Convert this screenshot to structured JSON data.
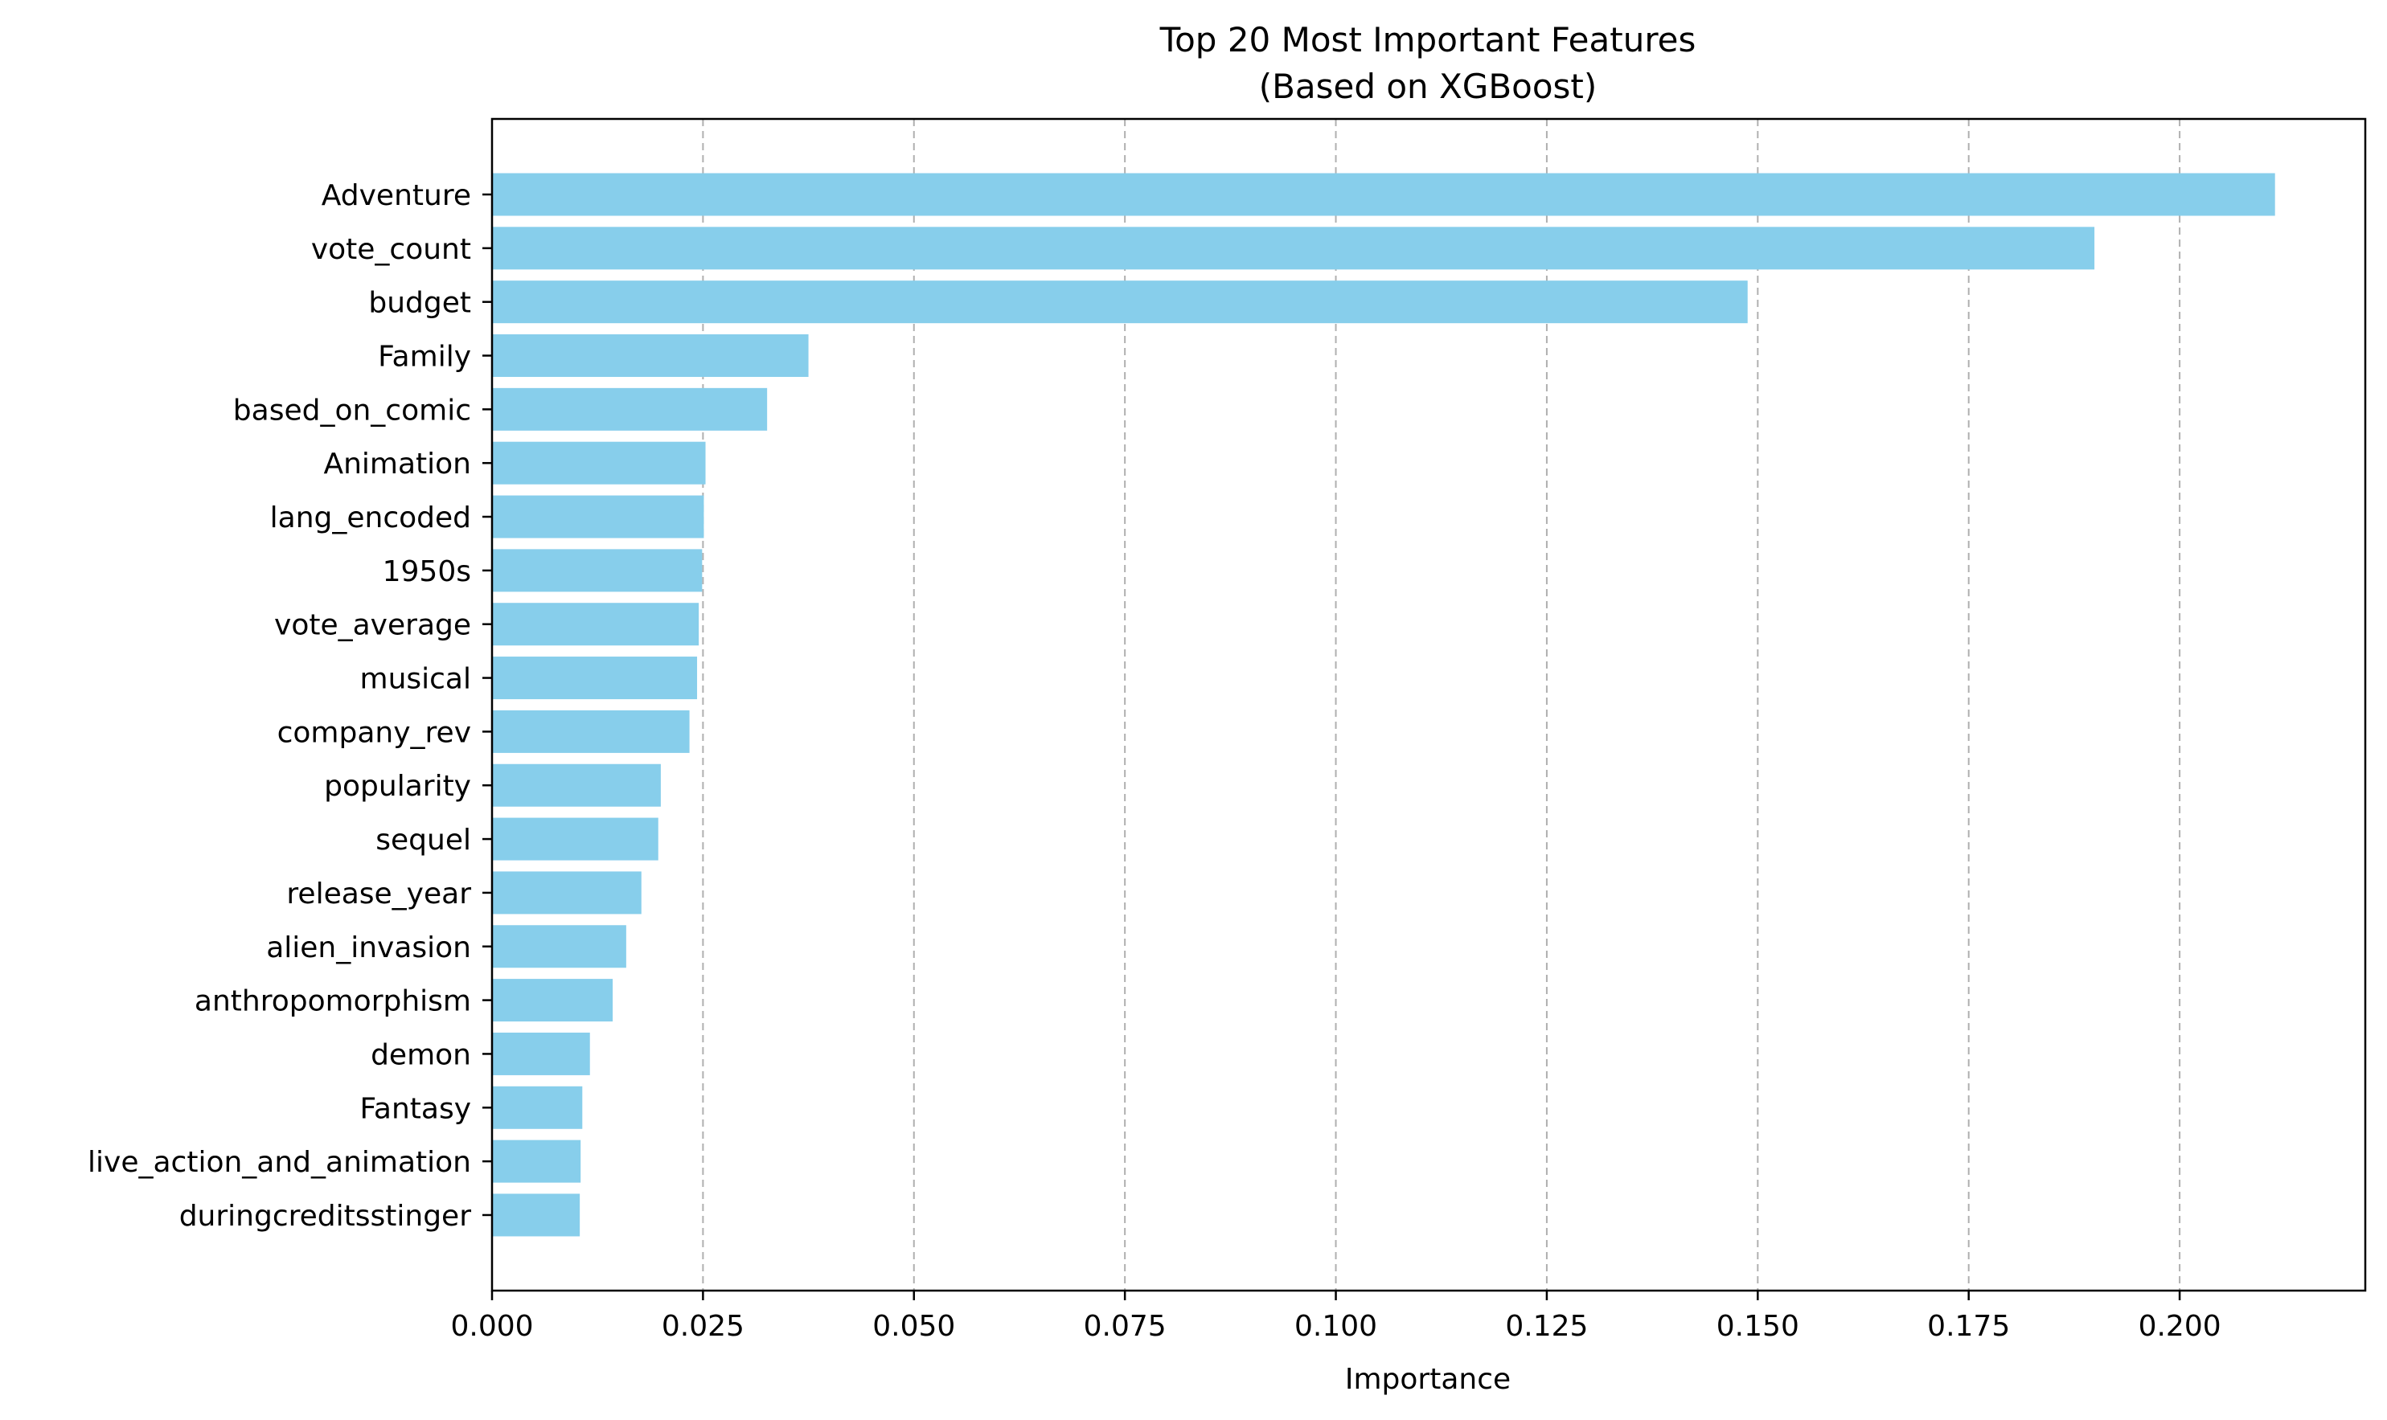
{
  "chart_data": {
    "type": "bar",
    "orientation": "horizontal",
    "title_line1": "Top 20 Most Important Features",
    "title_line2": "(Based on XGBoost)",
    "xlabel": "Importance",
    "ylabel": "",
    "xlim": [
      0,
      0.222
    ],
    "xticks": [
      "0.000",
      "0.025",
      "0.050",
      "0.075",
      "0.100",
      "0.125",
      "0.150",
      "0.175",
      "0.200"
    ],
    "xtick_values": [
      0,
      0.025,
      0.05,
      0.075,
      0.1,
      0.125,
      0.15,
      0.175,
      0.2
    ],
    "grid": "x-axis dashed",
    "color": "#87ceeb",
    "categories": [
      "Adventure",
      "vote_count",
      "budget",
      "Family",
      "based_on_comic",
      "Animation",
      "lang_encoded",
      "1950s",
      "vote_average",
      "musical",
      "company_rev",
      "popularity",
      "sequel",
      "release_year",
      "alien_invasion",
      "anthropomorphism",
      "demon",
      "Fantasy",
      "live_action_and_animation",
      "duringcreditsstinger"
    ],
    "values": [
      0.2113,
      0.1899,
      0.1488,
      0.0375,
      0.0326,
      0.0253,
      0.0251,
      0.0249,
      0.0245,
      0.0243,
      0.0234,
      0.02,
      0.0197,
      0.0177,
      0.0159,
      0.0143,
      0.0116,
      0.0107,
      0.0105,
      0.0104
    ]
  }
}
